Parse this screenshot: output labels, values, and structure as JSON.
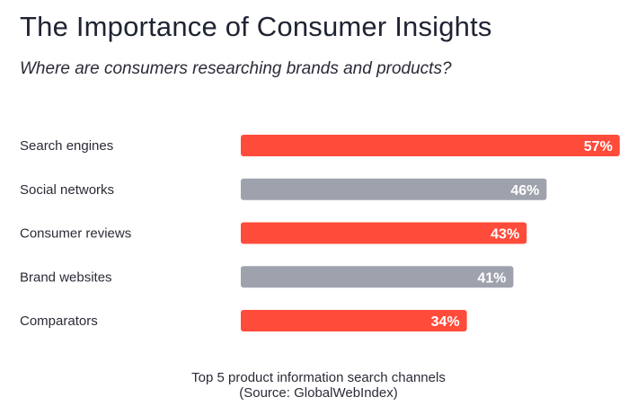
{
  "title": "The Importance of Consumer Insights",
  "subtitle": "Where are consumers researching brands and products?",
  "footer": {
    "line1": "Top 5 product information search channels",
    "line2": "(Source: GlobalWebIndex)"
  },
  "colors": {
    "accent": "#ff4b3a",
    "neutral": "#9ea2ad",
    "label": "#2b2b38",
    "value_text": "#ffffff"
  },
  "chart_data": {
    "type": "bar",
    "orientation": "horizontal",
    "categories": [
      "Search engines",
      "Social networks",
      "Consumer reviews",
      "Brand websites",
      "Comparators"
    ],
    "values": [
      57,
      46,
      43,
      41,
      34
    ],
    "value_labels": [
      "57%",
      "46%",
      "43%",
      "41%",
      "34%"
    ],
    "bar_colors": [
      "accent",
      "neutral",
      "accent",
      "neutral",
      "accent"
    ],
    "unit": "%",
    "xlim": [
      0,
      100
    ],
    "grid": false,
    "legend": "none"
  }
}
